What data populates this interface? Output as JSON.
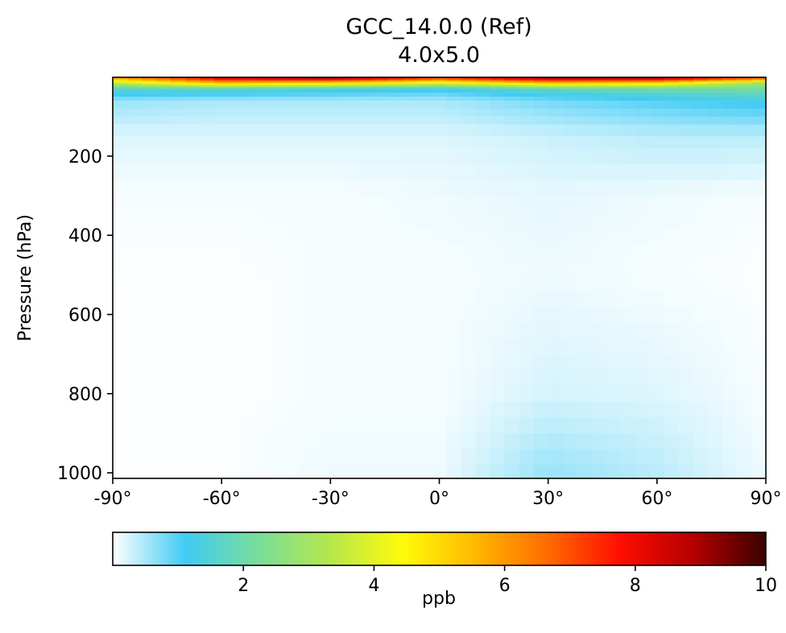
{
  "chart_data": {
    "type": "heatmap",
    "title": "GCC_14.0.0 (Ref)",
    "subtitle": "4.0x5.0",
    "xlabel": "",
    "ylabel": "Pressure (hPa)",
    "x_range": [
      -90,
      90
    ],
    "y_range": [
      1014,
      1
    ],
    "x_ticks": [
      -90,
      -60,
      -30,
      0,
      30,
      60,
      90
    ],
    "x_tick_labels": [
      "-90°",
      "-60°",
      "-30°",
      "0°",
      "30°",
      "60°",
      "90°"
    ],
    "y_ticks": [
      200,
      400,
      600,
      800,
      1000
    ],
    "y_tick_labels": [
      "200",
      "400",
      "600",
      "800",
      "1000"
    ],
    "grid": false,
    "units": "ppb",
    "colorbar": {
      "label": "ppb",
      "min": 0,
      "max": 10,
      "ticks": [
        2,
        4,
        6,
        8,
        10
      ],
      "tick_labels": [
        "2",
        "4",
        "6",
        "8",
        "10"
      ],
      "colormap": [
        "#ffffff",
        "#41cbf4",
        "#78dd9a",
        "#b6e74a",
        "#fffb0a",
        "#ffb800",
        "#ff6a00",
        "#ff0d00",
        "#b40000",
        "#3b0000"
      ]
    },
    "latitudes": [
      -90,
      -60,
      -30,
      0,
      30,
      60,
      90
    ],
    "pressure_levels": [
      5,
      15,
      30,
      60,
      150,
      300,
      500,
      800,
      1000
    ],
    "values": [
      [
        5.5,
        8.0,
        8.6,
        7.0,
        8.6,
        8.5,
        6.5
      ],
      [
        3.5,
        5.5,
        5.0,
        4.0,
        5.5,
        5.0,
        2.8
      ],
      [
        1.6,
        1.6,
        1.4,
        1.2,
        1.7,
        2.0,
        2.2
      ],
      [
        0.6,
        0.5,
        0.5,
        0.5,
        0.8,
        1.0,
        1.2
      ],
      [
        0.2,
        0.2,
        0.2,
        0.2,
        0.3,
        0.4,
        0.4
      ],
      [
        0.05,
        0.05,
        0.05,
        0.1,
        0.15,
        0.1,
        0.05
      ],
      [
        0.02,
        0.02,
        0.05,
        0.05,
        0.1,
        0.05,
        0.02
      ],
      [
        0.02,
        0.02,
        0.05,
        0.05,
        0.25,
        0.2,
        0.05
      ],
      [
        0.02,
        0.02,
        0.1,
        0.1,
        0.6,
        0.4,
        0.1
      ]
    ]
  }
}
